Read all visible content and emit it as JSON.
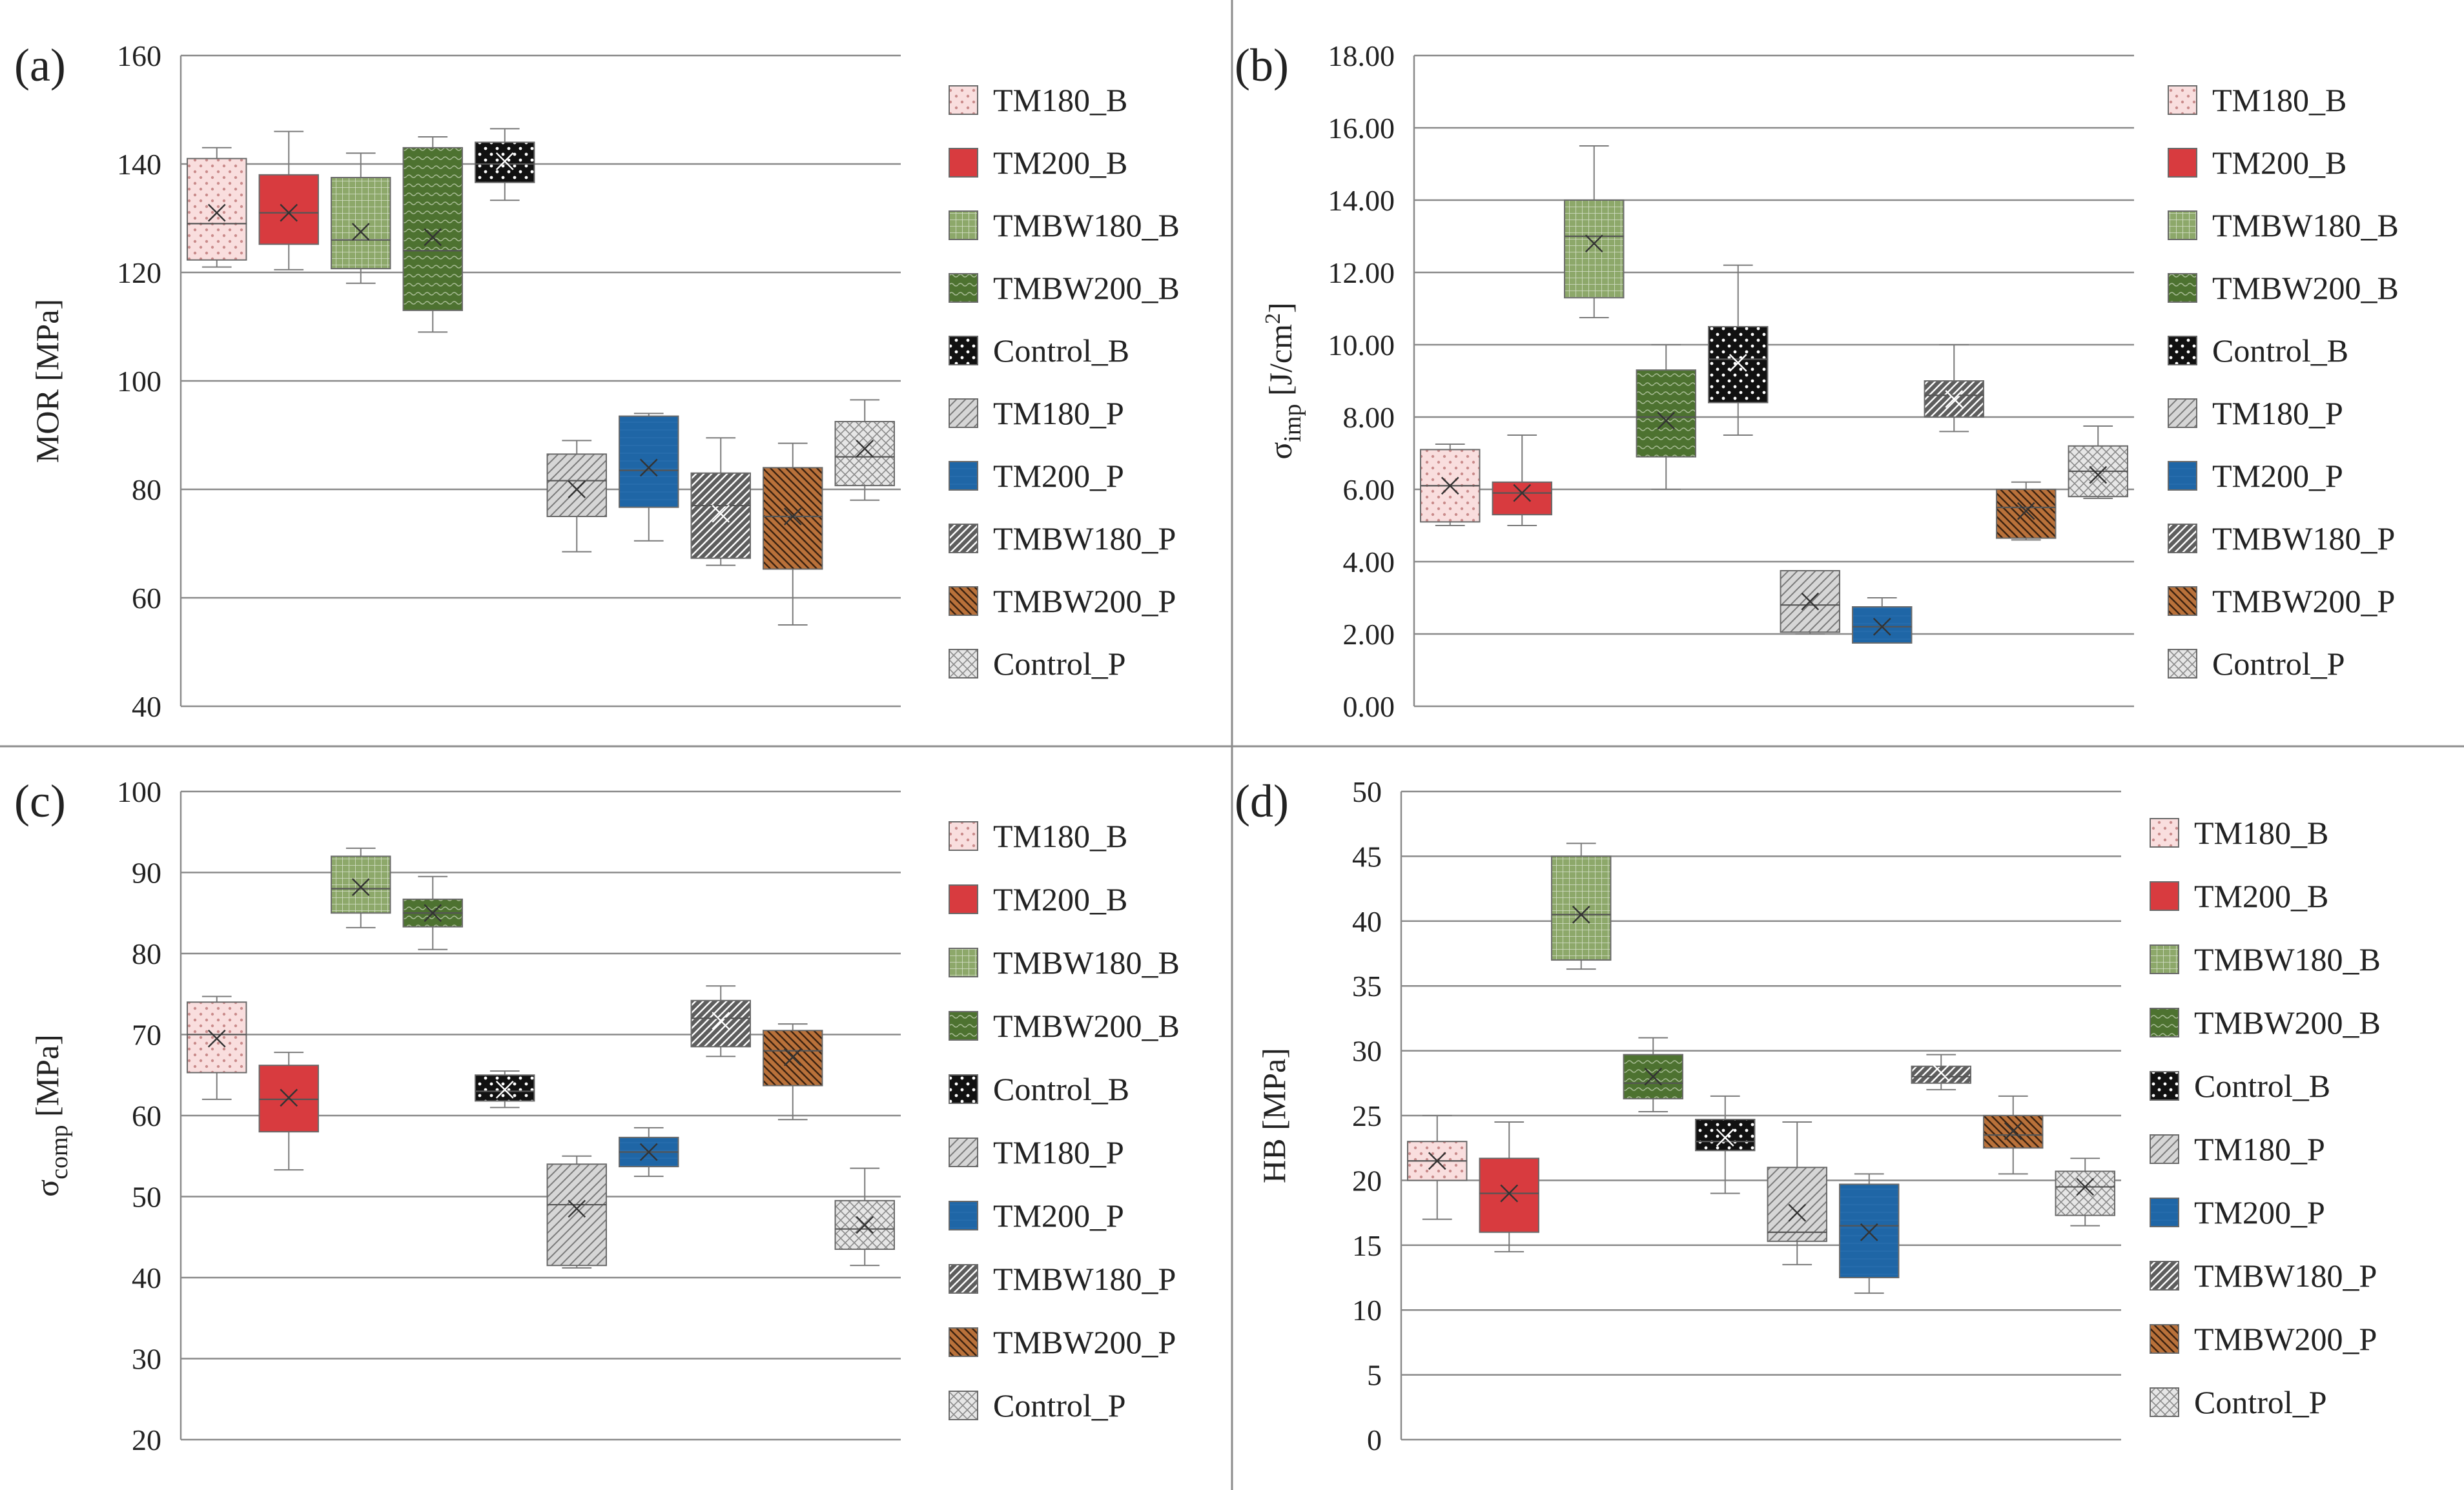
{
  "figure": {
    "colors": {
      "TM180_B": "#f9dede",
      "TM200_B": "#d83b3f",
      "TMBW180_B": "#8da86a",
      "TMBW200_B": "#4d7230",
      "Control_B": "#111111",
      "TM180_P": "#d6d6d6",
      "TM200_P": "#1f66a6",
      "TMBW180_P": "#5e5e5e",
      "TMBW200_P": "#b9713a",
      "Control_P": "#e6e6e6"
    },
    "legend": [
      "TM180_B",
      "TM200_B",
      "TMBW180_B",
      "TMBW200_B",
      "Control_B",
      "TM180_P",
      "TM200_P",
      "TMBW180_P",
      "TMBW200_P",
      "Control_P"
    ]
  },
  "chart_data": [
    {
      "panel": "(a)",
      "type": "boxplot",
      "ylabel": "MOR [MPa]",
      "ylim": [
        40,
        160
      ],
      "yticks": [
        40,
        60,
        80,
        100,
        120,
        140,
        160
      ],
      "tick_decimals": 0,
      "grid": true,
      "legend_position": "right",
      "series": [
        {
          "name": "TM180_B",
          "min": 121,
          "q1": 122.3,
          "median": 129,
          "q3": 141,
          "max": 143,
          "mean": 131
        },
        {
          "name": "TM200_B",
          "min": 120.5,
          "q1": 125.2,
          "median": 131,
          "q3": 138,
          "max": 146,
          "mean": 131
        },
        {
          "name": "TMBW180_B",
          "min": 118,
          "q1": 120.7,
          "median": 126,
          "q3": 137.5,
          "max": 142,
          "mean": 127.5
        },
        {
          "name": "TMBW200_B",
          "min": 109,
          "q1": 113,
          "median": 124,
          "q3": 143,
          "max": 145,
          "mean": 126.5
        },
        {
          "name": "Control_B",
          "min": 133.3,
          "q1": 136.6,
          "median": 140,
          "q3": 144,
          "max": 146.5,
          "mean": 140.5
        },
        {
          "name": "TM180_P",
          "min": 68.5,
          "q1": 75,
          "median": 81.6,
          "q3": 86.5,
          "max": 89,
          "mean": 80
        },
        {
          "name": "TM200_P",
          "min": 70.5,
          "q1": 76.7,
          "median": 83.5,
          "q3": 93.5,
          "max": 94,
          "mean": 84
        },
        {
          "name": "TMBW180_P",
          "min": 66,
          "q1": 67.3,
          "median": 77,
          "q3": 83,
          "max": 89.5,
          "mean": 75.5
        },
        {
          "name": "TMBW200_P",
          "min": 55,
          "q1": 65.3,
          "median": 75,
          "q3": 84,
          "max": 88.5,
          "mean": 75
        },
        {
          "name": "Control_P",
          "min": 78,
          "q1": 80.7,
          "median": 86,
          "q3": 92.5,
          "max": 96.5,
          "mean": 87.5
        }
      ]
    },
    {
      "panel": "(b)",
      "type": "boxplot",
      "ylabel_main": "σ",
      "ylabel_sub": "imp",
      "ylabel_unit": " [J/cm",
      "ylabel_sup": "2",
      "ylabel_end": "]",
      "ylim": [
        0,
        18
      ],
      "yticks": [
        0,
        2,
        4,
        6,
        8,
        10,
        12,
        14,
        16,
        18
      ],
      "tick_decimals": 2,
      "grid": true,
      "legend_position": "right",
      "series": [
        {
          "name": "TM180_B",
          "min": 5,
          "q1": 5.1,
          "median": 6.1,
          "q3": 7.1,
          "max": 7.25,
          "mean": 6.1
        },
        {
          "name": "TM200_B",
          "min": 5,
          "q1": 5.3,
          "median": 5.9,
          "q3": 6.2,
          "max": 7.5,
          "mean": 5.9
        },
        {
          "name": "TMBW180_B",
          "min": 10.75,
          "q1": 11.3,
          "median": 13,
          "q3": 14,
          "max": 15.5,
          "mean": 12.8
        },
        {
          "name": "TMBW200_B",
          "min": 6,
          "q1": 6.9,
          "median": 8,
          "q3": 9.3,
          "max": 10,
          "mean": 7.9
        },
        {
          "name": "Control_B",
          "min": 7.5,
          "q1": 8.4,
          "median": 9.6,
          "q3": 10.5,
          "max": 12.2,
          "mean": 9.5
        },
        {
          "name": "TM180_P",
          "min": 2,
          "q1": 2.05,
          "median": 2.8,
          "q3": 3.75,
          "max": 3.75,
          "mean": 2.9
        },
        {
          "name": "TM200_P",
          "min": 1.75,
          "q1": 1.75,
          "median": 2.2,
          "q3": 2.75,
          "max": 3,
          "mean": 2.2
        },
        {
          "name": "TMBW180_P",
          "min": 7.6,
          "q1": 8,
          "median": 8.6,
          "q3": 9,
          "max": 10,
          "mean": 8.5
        },
        {
          "name": "TMBW200_P",
          "min": 4.6,
          "q1": 4.65,
          "median": 5.5,
          "q3": 6,
          "max": 6.2,
          "mean": 5.4
        },
        {
          "name": "Control_P",
          "min": 5.75,
          "q1": 5.8,
          "median": 6.5,
          "q3": 7.2,
          "max": 7.75,
          "mean": 6.4
        }
      ]
    },
    {
      "panel": "(c)",
      "type": "boxplot",
      "ylabel_main": "σ",
      "ylabel_sub": "comp",
      "ylabel_unit": " [MPa]",
      "ylim": [
        20,
        100
      ],
      "yticks": [
        20,
        30,
        40,
        50,
        60,
        70,
        80,
        90,
        100
      ],
      "tick_decimals": 0,
      "grid": true,
      "legend_position": "right",
      "series": [
        {
          "name": "TM180_B",
          "min": 62,
          "q1": 65.3,
          "median": 70,
          "q3": 74,
          "max": 74.7,
          "mean": 69.5
        },
        {
          "name": "TM200_B",
          "min": 53.3,
          "q1": 58,
          "median": 62,
          "q3": 66.2,
          "max": 67.8,
          "mean": 62.2
        },
        {
          "name": "TMBW180_B",
          "min": 83.2,
          "q1": 85,
          "median": 88,
          "q3": 92,
          "max": 93,
          "mean": 88.2
        },
        {
          "name": "TMBW200_B",
          "min": 80.5,
          "q1": 83.3,
          "median": 85,
          "q3": 86.7,
          "max": 89.5,
          "mean": 85
        },
        {
          "name": "Control_B",
          "min": 61,
          "q1": 61.8,
          "median": 63,
          "q3": 65,
          "max": 65.5,
          "mean": 63.2
        },
        {
          "name": "TM180_P",
          "min": 41.2,
          "q1": 41.5,
          "median": 49,
          "q3": 54,
          "max": 55,
          "mean": 48.5
        },
        {
          "name": "TM200_P",
          "min": 52.5,
          "q1": 53.7,
          "median": 55.5,
          "q3": 57.3,
          "max": 58.5,
          "mean": 55.5
        },
        {
          "name": "TMBW180_P",
          "min": 67.3,
          "q1": 68.5,
          "median": 72,
          "q3": 74.2,
          "max": 76,
          "mean": 71.7
        },
        {
          "name": "TMBW200_P",
          "min": 59.5,
          "q1": 63.7,
          "median": 68,
          "q3": 70.5,
          "max": 71.3,
          "mean": 67.2
        },
        {
          "name": "Control_P",
          "min": 41.5,
          "q1": 43.5,
          "median": 46,
          "q3": 49.5,
          "max": 53.5,
          "mean": 46.5
        }
      ]
    },
    {
      "panel": "(d)",
      "type": "boxplot",
      "ylabel": "HB [MPa]",
      "ylim": [
        0,
        50
      ],
      "yticks": [
        0,
        5,
        10,
        15,
        20,
        25,
        30,
        35,
        40,
        45,
        50
      ],
      "tick_decimals": 0,
      "grid": true,
      "legend_position": "right",
      "series": [
        {
          "name": "TM180_B",
          "min": 17,
          "q1": 20,
          "median": 21.5,
          "q3": 23,
          "max": 25,
          "mean": 21.5
        },
        {
          "name": "TM200_B",
          "min": 14.5,
          "q1": 16,
          "median": 19,
          "q3": 21.7,
          "max": 24.5,
          "mean": 19
        },
        {
          "name": "TMBW180_B",
          "min": 36.3,
          "q1": 37,
          "median": 40.5,
          "q3": 45,
          "max": 46,
          "mean": 40.5
        },
        {
          "name": "TMBW200_B",
          "min": 25.3,
          "q1": 26.3,
          "median": 27.5,
          "q3": 29.7,
          "max": 31,
          "mean": 28
        },
        {
          "name": "Control_B",
          "min": 19,
          "q1": 22.3,
          "median": 23,
          "q3": 24.7,
          "max": 26.5,
          "mean": 23.3
        },
        {
          "name": "TM180_P",
          "min": 13.5,
          "q1": 15.3,
          "median": 16,
          "q3": 21,
          "max": 24.5,
          "mean": 17.5
        },
        {
          "name": "TM200_P",
          "min": 11.3,
          "q1": 12.5,
          "median": 16.5,
          "q3": 19.7,
          "max": 20.5,
          "mean": 16
        },
        {
          "name": "TMBW180_P",
          "min": 27,
          "q1": 27.5,
          "median": 28,
          "q3": 28.8,
          "max": 29.7,
          "mean": 28.3
        },
        {
          "name": "TMBW200_P",
          "min": 20.5,
          "q1": 22.5,
          "median": 23.5,
          "q3": 25,
          "max": 26.5,
          "mean": 23.8
        },
        {
          "name": "Control_P",
          "min": 16.5,
          "q1": 17.3,
          "median": 19.5,
          "q3": 20.7,
          "max": 21.7,
          "mean": 19.5
        }
      ]
    }
  ]
}
